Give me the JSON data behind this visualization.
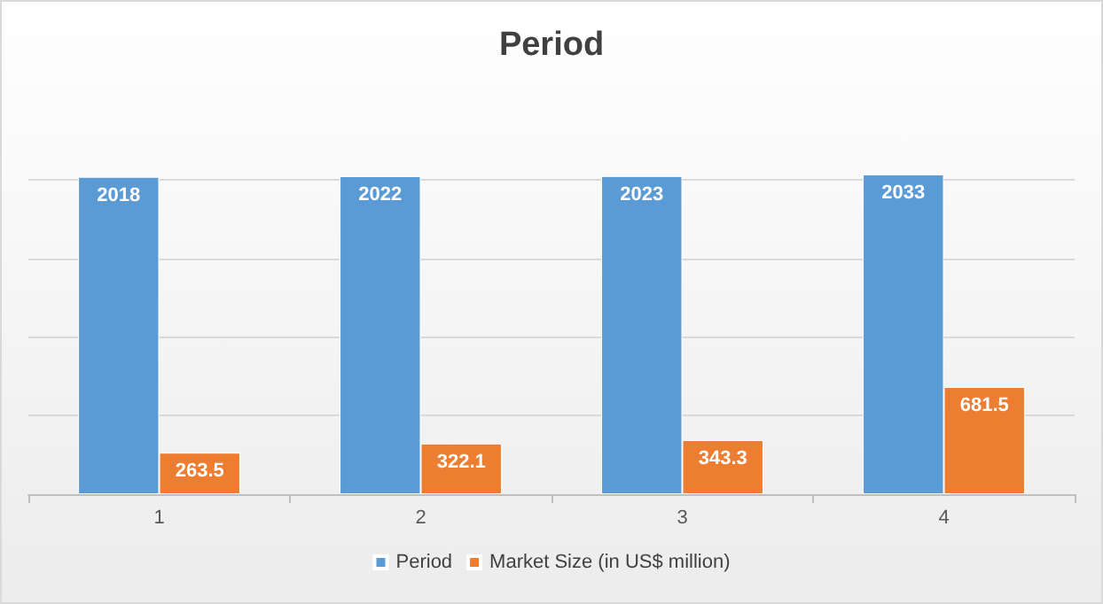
{
  "chart_data": {
    "type": "bar",
    "title": "Period",
    "categories": [
      "1",
      "2",
      "3",
      "4"
    ],
    "series": [
      {
        "name": "Period",
        "color": "#5b9bd5",
        "values": [
          2018,
          2022,
          2023,
          2033
        ]
      },
      {
        "name": "Market Size (in US$ million)",
        "color": "#ed7d31",
        "values": [
          263.5,
          322.1,
          343.3,
          681.5
        ]
      }
    ],
    "ylim": [
      0,
      2050
    ],
    "yticks": [
      {
        "value": 0,
        "label": null
      },
      {
        "value": 500,
        "label": null
      },
      {
        "value": 1000,
        "label": null
      },
      {
        "value": 1500,
        "label": null
      },
      {
        "value": 2000,
        "label": null
      }
    ],
    "tick_labels": "x",
    "grid": "y",
    "data_labels": true,
    "legend": "bottom"
  }
}
